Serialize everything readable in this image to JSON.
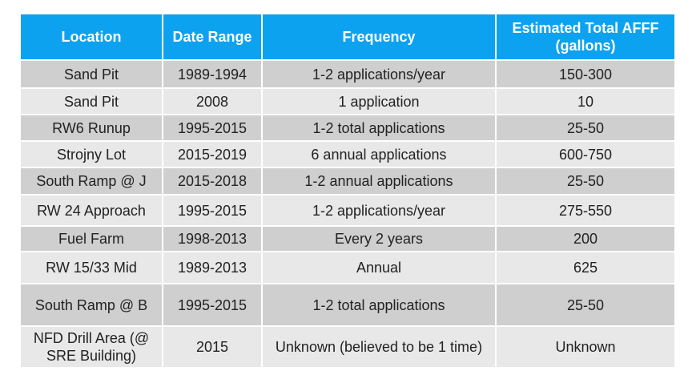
{
  "headers": {
    "location": "Location",
    "date_range": "Date Range",
    "frequency": "Frequency",
    "afff": "Estimated Total AFFF (gallons)"
  },
  "rows": [
    {
      "location": "Sand Pit",
      "date_range": "1989-1994",
      "frequency": "1-2 applications/year",
      "afff": "150-300"
    },
    {
      "location": "Sand Pit",
      "date_range": "2008",
      "frequency": "1 application",
      "afff": "10"
    },
    {
      "location": "RW6 Runup",
      "date_range": "1995-2015",
      "frequency": "1-2 total applications",
      "afff": "25-50"
    },
    {
      "location": "Strojny Lot",
      "date_range": "2015-2019",
      "frequency": "6 annual applications",
      "afff": "600-750"
    },
    {
      "location": "South Ramp @ J",
      "date_range": "2015-2018",
      "frequency": "1-2 annual applications",
      "afff": "25-50"
    },
    {
      "location": "RW 24 Approach",
      "date_range": "1995-2015",
      "frequency": "1-2 applications/year",
      "afff": "275-550"
    },
    {
      "location": "Fuel Farm",
      "date_range": "1998-2013",
      "frequency": "Every 2 years",
      "afff": "200"
    },
    {
      "location": "RW 15/33 Mid",
      "date_range": "1989-2013",
      "frequency": "Annual",
      "afff": "625"
    },
    {
      "location": "South Ramp @ B",
      "date_range": "1995-2015",
      "frequency": "1-2 total applications",
      "afff": "25-50"
    },
    {
      "location": "NFD Drill Area (@ SRE Building)",
      "date_range": "2015",
      "frequency": "Unknown (believed to be 1 time)",
      "afff": "Unknown"
    }
  ],
  "colors": {
    "header_bg": "#0da2f0",
    "row_dark": "#cfcfcf",
    "row_light": "#e8e8e8"
  }
}
